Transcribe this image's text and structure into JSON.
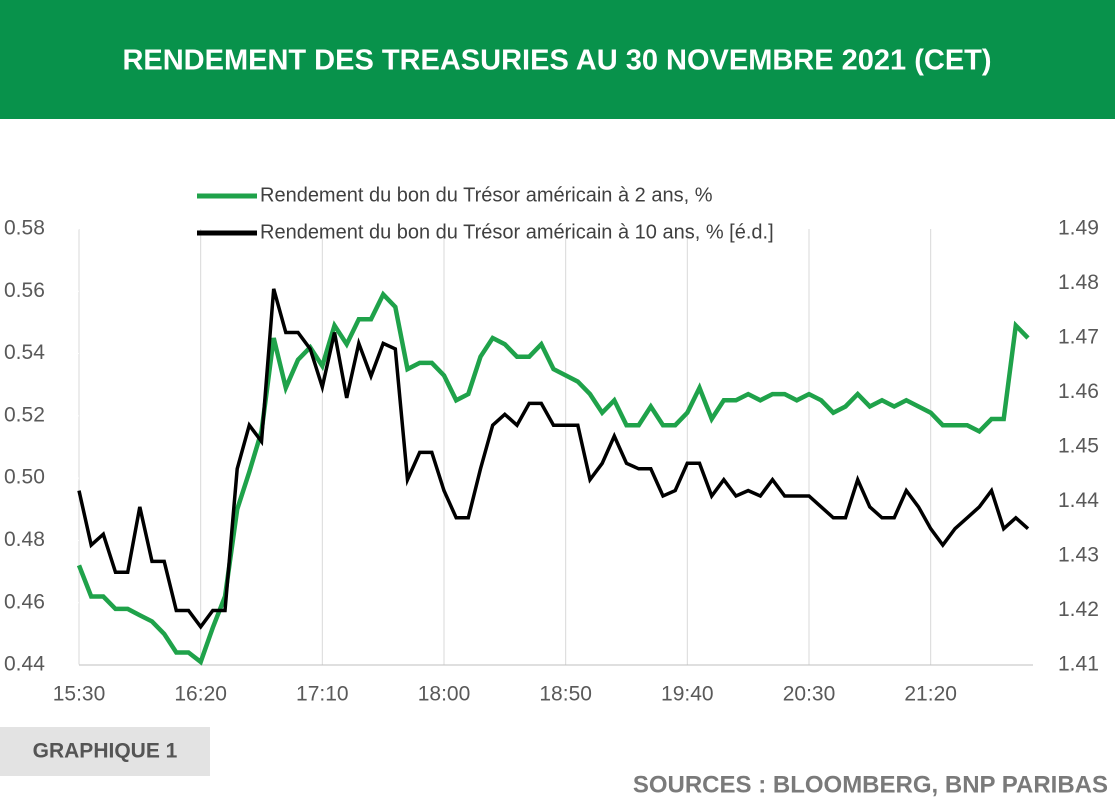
{
  "chart_data": {
    "type": "line",
    "title": "RENDEMENT DES TREASURIES AU 30 NOVEMBRE 2021 (CET)",
    "chart_label": "GRAPHIQUE 1",
    "source": "SOURCES : BLOOMBERG, BNP PARIBAS",
    "categories": [
      "15:30",
      null,
      null,
      null,
      null,
      null,
      null,
      null,
      null,
      null,
      "16:20",
      null,
      null,
      null,
      null,
      null,
      null,
      null,
      null,
      null,
      "17:10",
      null,
      null,
      null,
      null,
      null,
      null,
      null,
      null,
      null,
      "18:00",
      null,
      null,
      null,
      null,
      null,
      null,
      null,
      null,
      null,
      "18:50",
      null,
      null,
      null,
      null,
      null,
      null,
      null,
      null,
      null,
      "19:40",
      null,
      null,
      null,
      null,
      null,
      null,
      null,
      null,
      null,
      "20:30",
      null,
      null,
      null,
      null,
      null,
      null,
      null,
      null,
      null,
      "21:20",
      null,
      null,
      null,
      null,
      null,
      null,
      null,
      null
    ],
    "series": [
      {
        "name": "Rendement du bon du Trésor américain à 2 ans, %",
        "color": "#1fa24a",
        "axis": "y",
        "values": [
          0.472,
          0.462,
          0.462,
          0.458,
          0.458,
          0.456,
          0.454,
          0.45,
          0.444,
          0.444,
          0.441,
          0.452,
          0.462,
          0.49,
          0.502,
          0.515,
          0.545,
          0.529,
          0.538,
          0.542,
          0.536,
          0.549,
          0.543,
          0.551,
          0.551,
          0.559,
          0.555,
          0.535,
          0.537,
          0.537,
          0.533,
          0.525,
          0.527,
          0.539,
          0.545,
          0.543,
          0.539,
          0.539,
          0.543,
          0.535,
          0.533,
          0.531,
          0.527,
          0.521,
          0.525,
          0.517,
          0.517,
          0.523,
          0.517,
          0.517,
          0.521,
          0.529,
          0.519,
          0.525,
          0.525,
          0.527,
          0.525,
          0.527,
          0.527,
          0.525,
          0.527,
          0.525,
          0.521,
          0.523,
          0.527,
          0.523,
          0.525,
          0.523,
          0.525,
          0.523,
          0.521,
          0.517,
          0.517,
          0.517,
          0.515,
          0.519,
          0.519,
          0.549,
          0.545
        ]
      },
      {
        "name": "Rendement du bon du Trésor américain à 10 ans, %  [é.d.]",
        "color": "#000000",
        "axis": "y2",
        "values": [
          1.442,
          1.432,
          1.434,
          1.427,
          1.427,
          1.439,
          1.429,
          1.429,
          1.42,
          1.42,
          1.417,
          1.42,
          1.42,
          1.446,
          1.454,
          1.451,
          1.479,
          1.471,
          1.471,
          1.468,
          1.461,
          1.471,
          1.459,
          1.469,
          1.463,
          1.469,
          1.468,
          1.444,
          1.449,
          1.449,
          1.442,
          1.437,
          1.437,
          1.446,
          1.454,
          1.456,
          1.454,
          1.458,
          1.458,
          1.454,
          1.454,
          1.454,
          1.444,
          1.447,
          1.452,
          1.447,
          1.446,
          1.446,
          1.441,
          1.442,
          1.447,
          1.447,
          1.441,
          1.444,
          1.441,
          1.442,
          1.441,
          1.444,
          1.441,
          1.441,
          1.441,
          1.439,
          1.437,
          1.437,
          1.444,
          1.439,
          1.437,
          1.437,
          1.442,
          1.439,
          1.435,
          1.432,
          1.435,
          1.437,
          1.439,
          1.442,
          1.435,
          1.437,
          1.435
        ]
      }
    ],
    "ylim": [
      0.44,
      0.58
    ],
    "yticks": [
      0.44,
      0.46,
      0.48,
      {
        "value": 0.5,
        "label": "0.50"
      },
      0.52,
      0.54,
      0.56,
      0.58
    ],
    "y2lim": [
      1.41,
      1.49
    ],
    "y2ticks": [
      1.41,
      1.42,
      1.43,
      1.44,
      1.45,
      1.46,
      1.47,
      1.48,
      1.49
    ],
    "xgrid": true
  }
}
